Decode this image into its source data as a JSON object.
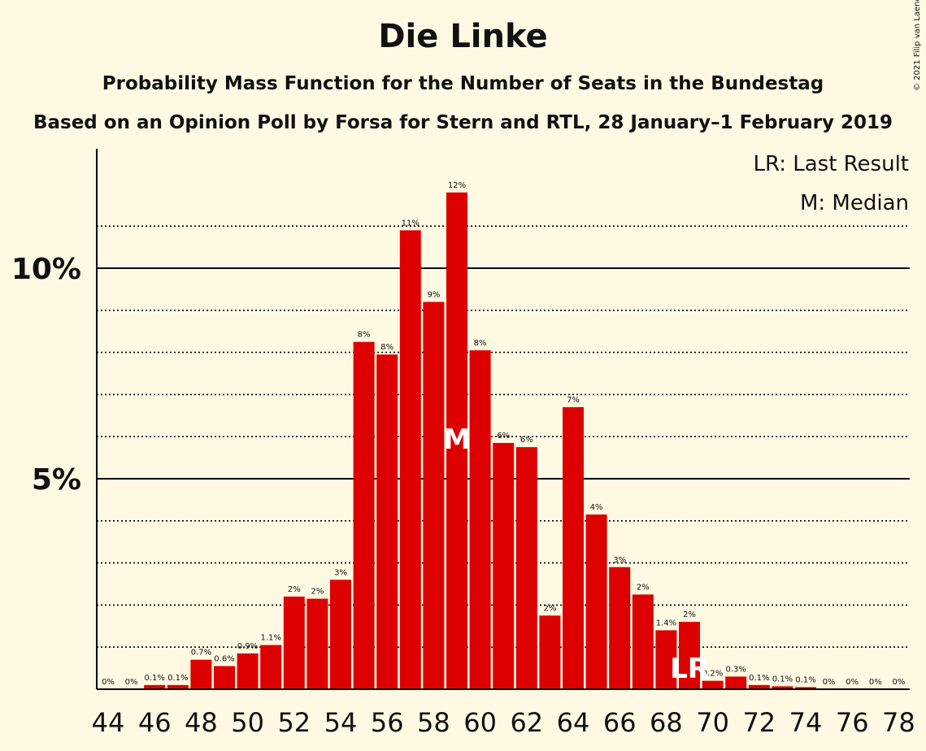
{
  "chart_data": {
    "type": "bar",
    "title": "Die Linke",
    "subtitle": "Probability Mass Function for the Number of Seats in the Bundestag",
    "subtitle2": "Based on an Opinion Poll by Forsa for Stern and RTL, 28 January–1 February 2019",
    "copyright": "© 2021 Filip van Laenen",
    "legend": [
      "LR: Last Result",
      "M: Median"
    ],
    "legend_position": "top-right",
    "ylim": [
      0,
      12.9
    ],
    "y_ticks": [
      {
        "value": 5,
        "label": "5%"
      },
      {
        "value": 10,
        "label": "10%"
      }
    ],
    "minor_gridlines": [
      1,
      2,
      3,
      4,
      6,
      7,
      8,
      9,
      11
    ],
    "x_tick_labels": [
      "44",
      "46",
      "48",
      "50",
      "52",
      "54",
      "56",
      "58",
      "60",
      "62",
      "64",
      "66",
      "68",
      "70",
      "72",
      "74",
      "76",
      "78"
    ],
    "median_seat": 59,
    "median_marker": "M",
    "last_result_seat": 69,
    "last_result_marker": "LR",
    "bar_color": "#dd0000",
    "bars": [
      {
        "seat": 44,
        "value": 0,
        "label": "0%"
      },
      {
        "seat": 45,
        "value": 0,
        "label": "0%"
      },
      {
        "seat": 46,
        "value": 0.1,
        "label": "0.1%"
      },
      {
        "seat": 47,
        "value": 0.1,
        "label": "0.1%"
      },
      {
        "seat": 48,
        "value": 0.7,
        "label": "0.7%"
      },
      {
        "seat": 49,
        "value": 0.55,
        "label": "0.6%"
      },
      {
        "seat": 50,
        "value": 0.85,
        "label": "0.9%"
      },
      {
        "seat": 51,
        "value": 1.05,
        "label": "1.1%"
      },
      {
        "seat": 52,
        "value": 2.2,
        "label": "2%"
      },
      {
        "seat": 53,
        "value": 2.15,
        "label": "2%"
      },
      {
        "seat": 54,
        "value": 2.6,
        "label": "3%"
      },
      {
        "seat": 55,
        "value": 8.25,
        "label": "8%"
      },
      {
        "seat": 56,
        "value": 7.95,
        "label": "8%"
      },
      {
        "seat": 57,
        "value": 10.9,
        "label": "11%"
      },
      {
        "seat": 58,
        "value": 9.2,
        "label": "9%"
      },
      {
        "seat": 59,
        "value": 11.8,
        "label": "12%"
      },
      {
        "seat": 60,
        "value": 8.05,
        "label": "8%"
      },
      {
        "seat": 61,
        "value": 5.85,
        "label": "6%"
      },
      {
        "seat": 62,
        "value": 5.75,
        "label": "6%"
      },
      {
        "seat": 63,
        "value": 1.75,
        "label": "2%"
      },
      {
        "seat": 64,
        "value": 6.7,
        "label": "7%"
      },
      {
        "seat": 65,
        "value": 4.15,
        "label": "4%"
      },
      {
        "seat": 66,
        "value": 2.9,
        "label": "3%"
      },
      {
        "seat": 67,
        "value": 2.25,
        "label": "2%"
      },
      {
        "seat": 68,
        "value": 1.4,
        "label": "1.4%"
      },
      {
        "seat": 69,
        "value": 1.6,
        "label": "2%"
      },
      {
        "seat": 70,
        "value": 0.2,
        "label": "0.2%"
      },
      {
        "seat": 71,
        "value": 0.3,
        "label": "0.3%"
      },
      {
        "seat": 72,
        "value": 0.1,
        "label": "0.1%"
      },
      {
        "seat": 73,
        "value": 0.07,
        "label": "0.1%"
      },
      {
        "seat": 74,
        "value": 0.05,
        "label": "0.1%"
      },
      {
        "seat": 75,
        "value": 0,
        "label": "0%"
      },
      {
        "seat": 76,
        "value": 0,
        "label": "0%"
      },
      {
        "seat": 77,
        "value": 0,
        "label": "0%"
      },
      {
        "seat": 78,
        "value": 0,
        "label": "0%"
      }
    ]
  }
}
